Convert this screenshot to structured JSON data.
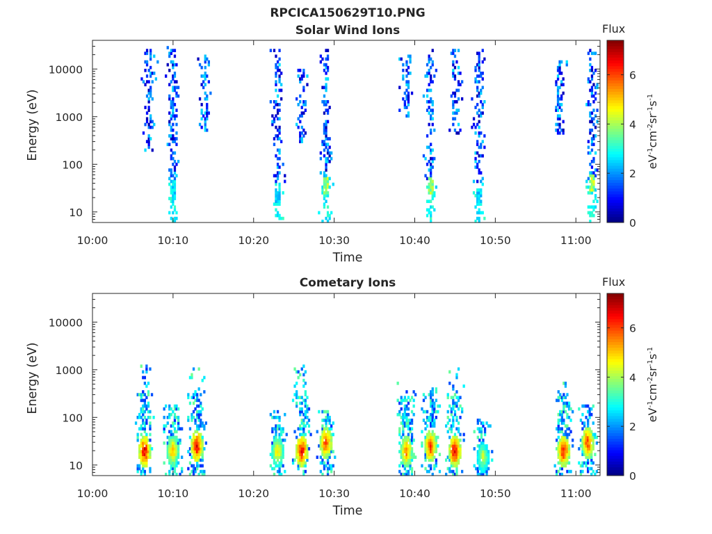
{
  "figure": {
    "title": "RPCICA150629T10.PNG"
  },
  "chart_data": [
    {
      "type": "heatmap",
      "title": "Solar Wind Ions",
      "xlabel": "Time",
      "ylabel": "Energy (eV)",
      "y_scale": "log",
      "ylim": [
        6,
        40000
      ],
      "xlim": [
        "10:00",
        "11:03"
      ],
      "x_ticks": [
        "10:00",
        "10:10",
        "10:20",
        "10:30",
        "10:40",
        "10:50",
        "11:00"
      ],
      "y_ticks": [
        "10",
        "100",
        "1000",
        "10000"
      ],
      "colorbar": {
        "title": "Flux",
        "label": "eV-1cm-2sr-1s-1",
        "range": [
          0,
          7.4
        ],
        "ticks": [
          "0",
          "2",
          "4",
          "6"
        ],
        "colormap": "jet"
      },
      "bursts": [
        {
          "time": "10:07",
          "energy_range_eV": [
            200,
            25000
          ],
          "low_energy_peak_eV": null,
          "max_flux": 2.6
        },
        {
          "time": "10:10",
          "energy_range_eV": [
            6,
            30000
          ],
          "low_energy_peak_eV": 30,
          "max_flux": 3.0
        },
        {
          "time": "10:14",
          "energy_range_eV": [
            500,
            20000
          ],
          "low_energy_peak_eV": null,
          "max_flux": 2.5
        },
        {
          "time": "10:23",
          "energy_range_eV": [
            6,
            25000
          ],
          "low_energy_peak_eV": 20,
          "max_flux": 3.0
        },
        {
          "time": "10:26",
          "energy_range_eV": [
            300,
            10000
          ],
          "low_energy_peak_eV": null,
          "max_flux": 2.6
        },
        {
          "time": "10:29",
          "energy_range_eV": [
            6,
            25000
          ],
          "low_energy_peak_eV": 35,
          "max_flux": 4.6
        },
        {
          "time": "10:39",
          "energy_range_eV": [
            1000,
            20000
          ],
          "low_energy_peak_eV": null,
          "max_flux": 2.8
        },
        {
          "time": "10:42",
          "energy_range_eV": [
            6,
            25000
          ],
          "low_energy_peak_eV": 35,
          "max_flux": 4.5
        },
        {
          "time": "10:45",
          "energy_range_eV": [
            400,
            25000
          ],
          "low_energy_peak_eV": null,
          "max_flux": 2.6
        },
        {
          "time": "10:48",
          "energy_range_eV": [
            6,
            25000
          ],
          "low_energy_peak_eV": 20,
          "max_flux": 3.0
        },
        {
          "time": "10:58",
          "energy_range_eV": [
            400,
            15000
          ],
          "low_energy_peak_eV": null,
          "max_flux": 2.6
        },
        {
          "time": "11:02",
          "energy_range_eV": [
            6,
            25000
          ],
          "low_energy_peak_eV": 40,
          "max_flux": 4.7
        }
      ]
    },
    {
      "type": "heatmap",
      "title": "Cometary Ions",
      "xlabel": "Time",
      "ylabel": "Energy (eV)",
      "y_scale": "log",
      "ylim": [
        6,
        40000
      ],
      "xlim": [
        "10:00",
        "11:03"
      ],
      "x_ticks": [
        "10:00",
        "10:10",
        "10:20",
        "10:30",
        "10:40",
        "10:50",
        "11:00"
      ],
      "y_ticks": [
        "10",
        "100",
        "1000",
        "10000"
      ],
      "colorbar": {
        "title": "Flux",
        "label": "eV-1cm-2sr-1s-1",
        "range": [
          0,
          7.4
        ],
        "ticks": [
          "0",
          "2",
          "4",
          "6"
        ],
        "colormap": "jet"
      },
      "bursts": [
        {
          "time": "10:06.5",
          "energy_range_eV": [
            6,
            1200
          ],
          "peak_energy_eV": 20,
          "max_flux": 7.0
        },
        {
          "time": "10:10",
          "energy_range_eV": [
            6,
            200
          ],
          "peak_energy_eV": 20,
          "max_flux": 5.5
        },
        {
          "time": "10:13",
          "energy_range_eV": [
            6,
            1300
          ],
          "peak_energy_eV": 25,
          "max_flux": 7.0
        },
        {
          "time": "10:23",
          "energy_range_eV": [
            6,
            150
          ],
          "peak_energy_eV": 20,
          "max_flux": 5.2
        },
        {
          "time": "10:26",
          "energy_range_eV": [
            6,
            1300
          ],
          "peak_energy_eV": 20,
          "max_flux": 7.0
        },
        {
          "time": "10:29",
          "energy_range_eV": [
            6,
            150
          ],
          "peak_energy_eV": 30,
          "max_flux": 6.5
        },
        {
          "time": "10:39",
          "energy_range_eV": [
            6,
            600
          ],
          "peak_energy_eV": 20,
          "max_flux": 6.0
        },
        {
          "time": "10:42",
          "energy_range_eV": [
            6,
            400
          ],
          "peak_energy_eV": 25,
          "max_flux": 6.5
        },
        {
          "time": "10:45",
          "energy_range_eV": [
            6,
            1200
          ],
          "peak_energy_eV": 20,
          "max_flux": 7.0
        },
        {
          "time": "10:48.5",
          "energy_range_eV": [
            6,
            100
          ],
          "peak_energy_eV": 15,
          "max_flux": 4.5
        },
        {
          "time": "10:58.5",
          "energy_range_eV": [
            6,
            600
          ],
          "peak_energy_eV": 20,
          "max_flux": 6.8
        },
        {
          "time": "11:01.5",
          "energy_range_eV": [
            6,
            200
          ],
          "peak_energy_eV": 30,
          "max_flux": 6.5
        }
      ]
    }
  ]
}
